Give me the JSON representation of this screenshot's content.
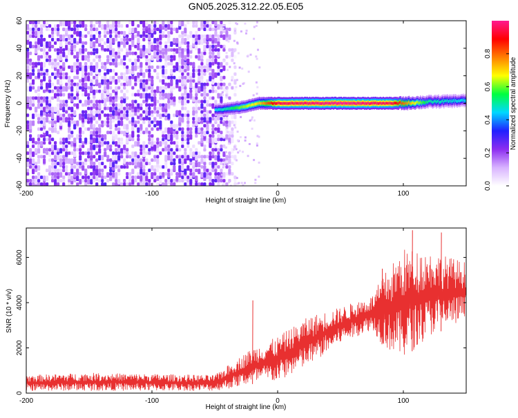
{
  "title": "GN05.2025.312.22.05.E05",
  "chart_data": [
    {
      "type": "heatmap",
      "xlabel": "Height of straight line (km)",
      "ylabel": "Frequency (Hz)",
      "xlim": [
        -200,
        150
      ],
      "ylim": [
        -60,
        60
      ],
      "xticks": [
        -200,
        -100,
        0,
        100
      ],
      "yticks": [
        -60,
        -40,
        -20,
        0,
        20,
        40,
        60
      ],
      "colorbar": {
        "label": "Normalized spectral amplitude",
        "range": [
          0,
          1
        ],
        "ticks": [
          0.0,
          0.2,
          0.4,
          0.6,
          0.8
        ],
        "colors": [
          "#ffffff",
          "#d8b3ff",
          "#8c2cf0",
          "#2020ff",
          "#00d8ff",
          "#00ff40",
          "#ffff00",
          "#ff8000",
          "#ff0000",
          "#ff1a90"
        ]
      },
      "noise_region": {
        "x": [
          -200,
          -45
        ],
        "amplitude": 0.25
      },
      "trace": {
        "description_points": [
          {
            "x": -50,
            "y": -5,
            "amp": 0.45
          },
          {
            "x": -40,
            "y": -4,
            "amp": 0.5
          },
          {
            "x": -30,
            "y": -3,
            "amp": 0.6
          },
          {
            "x": -15,
            "y": 0,
            "amp": 0.7
          },
          {
            "x": 0,
            "y": 0,
            "amp": 0.95
          },
          {
            "x": 50,
            "y": 0,
            "amp": 1.0
          },
          {
            "x": 90,
            "y": 0,
            "amp": 0.95
          },
          {
            "x": 100,
            "y": 0,
            "amp": 0.8
          },
          {
            "x": 120,
            "y": 1,
            "amp": 0.5
          },
          {
            "x": 150,
            "y": 2,
            "amp": 0.45
          }
        ]
      }
    },
    {
      "type": "line",
      "xlabel": "Height of straight line (km)",
      "ylabel": "SNR (10 * v/v)",
      "xlim": [
        -200,
        150
      ],
      "ylim": [
        0,
        7300
      ],
      "xticks": [
        -200,
        -100,
        0,
        100
      ],
      "yticks": [
        0,
        2000,
        4000,
        6000
      ],
      "color": "#e83030",
      "envelope": [
        {
          "x": -200,
          "low": 100,
          "high": 800
        },
        {
          "x": -150,
          "low": 100,
          "high": 900
        },
        {
          "x": -100,
          "low": 100,
          "high": 850
        },
        {
          "x": -50,
          "low": 100,
          "high": 800
        },
        {
          "x": -38,
          "low": 200,
          "high": 1300
        },
        {
          "x": -20,
          "low": 400,
          "high": 2000
        },
        {
          "x": 0,
          "low": 500,
          "high": 2500
        },
        {
          "x": 25,
          "low": 1200,
          "high": 3400
        },
        {
          "x": 50,
          "low": 2200,
          "high": 3800
        },
        {
          "x": 75,
          "low": 2800,
          "high": 4300
        },
        {
          "x": 85,
          "low": 2000,
          "high": 5300
        },
        {
          "x": 100,
          "low": 1500,
          "high": 6400
        },
        {
          "x": 120,
          "low": 2500,
          "high": 6300
        },
        {
          "x": 150,
          "low": 3200,
          "high": 5800
        }
      ],
      "spikes": [
        {
          "x": -20,
          "y": 4100
        },
        {
          "x": 107,
          "y": 7200
        },
        {
          "x": 130,
          "y": 7100
        },
        {
          "x": 83,
          "y": 5500
        }
      ]
    }
  ]
}
